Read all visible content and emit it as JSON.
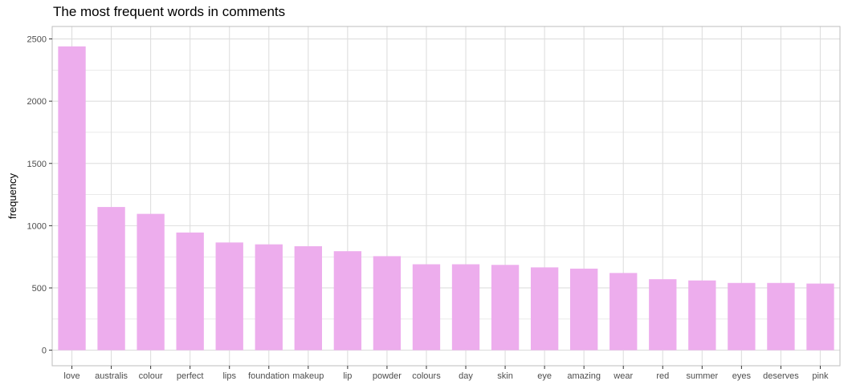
{
  "chart_data": {
    "type": "bar",
    "title": "The most frequent words in comments",
    "xlabel": "",
    "ylabel": "frequency",
    "categories": [
      "love",
      "australis",
      "colour",
      "perfect",
      "lips",
      "foundation",
      "makeup",
      "lip",
      "powder",
      "colours",
      "day",
      "skin",
      "eye",
      "amazing",
      "wear",
      "red",
      "summer",
      "eyes",
      "deserves",
      "pink"
    ],
    "values": [
      2440,
      1150,
      1095,
      945,
      865,
      850,
      835,
      795,
      755,
      690,
      690,
      685,
      665,
      655,
      620,
      570,
      560,
      540,
      540,
      535
    ],
    "ylim": [
      -125,
      2600
    ],
    "yticks": [
      0,
      500,
      1000,
      1500,
      2000,
      2500
    ],
    "ytick_labels": [
      "0",
      "500",
      "1000",
      "1500",
      "2000",
      "2500"
    ],
    "grid": true,
    "legend": "none",
    "bar_color": "#EDADED",
    "grid_color": "#DEDEDE",
    "panel_border_color": "#BDBDBD"
  }
}
